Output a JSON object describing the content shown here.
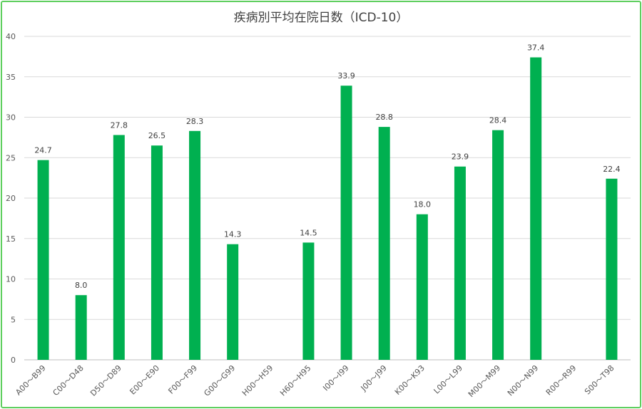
{
  "chart_data": {
    "type": "bar",
    "title": "疾病別平均在院日数（ICD-10）",
    "xlabel": "",
    "ylabel": "",
    "ylim": [
      0,
      40
    ],
    "yticks": [
      0,
      5,
      10,
      15,
      20,
      25,
      30,
      35,
      40
    ],
    "grid": true,
    "legend": "none",
    "bar_color": "#00b050",
    "categories": [
      "A00～B99",
      "C00～D48",
      "D50～D89",
      "E00～E90",
      "F00～F99",
      "G00～G99",
      "H00～H59",
      "H60～H95",
      "I00～I99",
      "J00～J99",
      "K00～K93",
      "L00～L99",
      "M00～M99",
      "N00～N99",
      "R00～R99",
      "S00～T98"
    ],
    "values": [
      24.7,
      8.0,
      27.8,
      26.5,
      28.3,
      14.3,
      null,
      14.5,
      33.9,
      28.8,
      18.0,
      23.9,
      28.4,
      37.4,
      null,
      22.4
    ],
    "data_labels": [
      "24.7",
      "8.0",
      "27.8",
      "26.5",
      "28.3",
      "14.3",
      "",
      "14.5",
      "33.9",
      "28.8",
      "18.0",
      "23.9",
      "28.4",
      "37.4",
      "",
      "22.4"
    ]
  }
}
